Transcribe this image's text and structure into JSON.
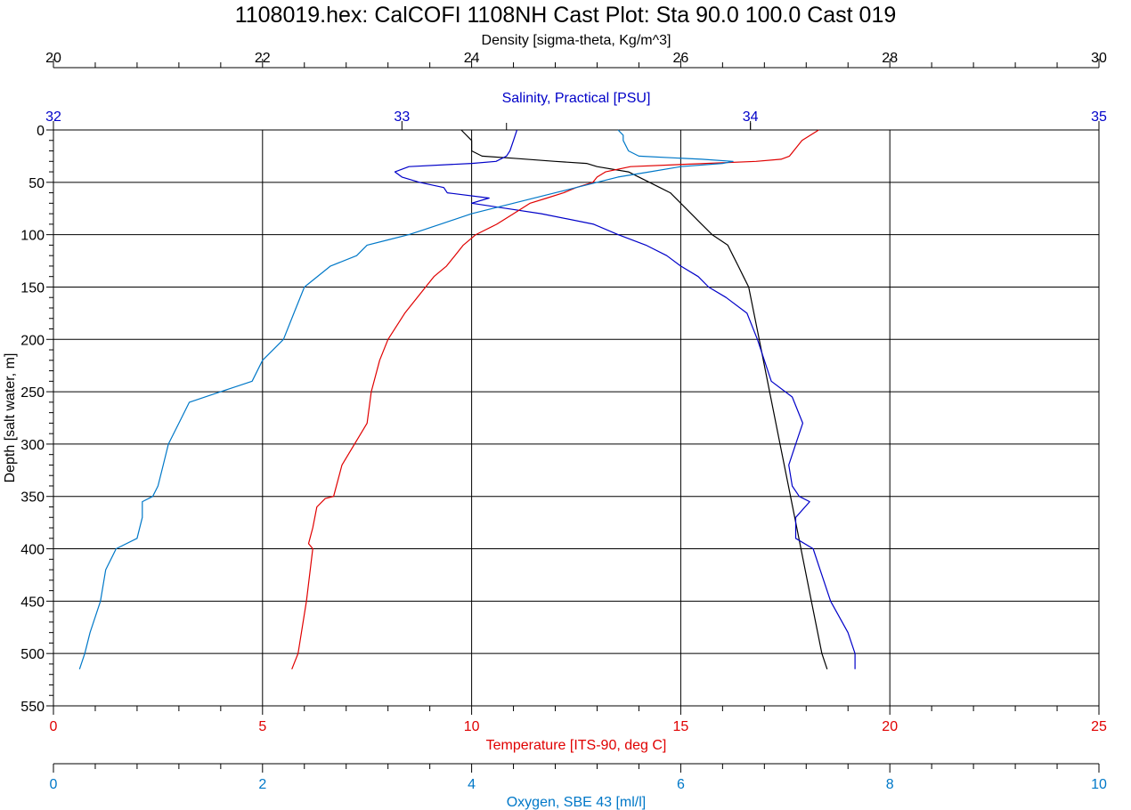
{
  "colors": {
    "density": "#000000",
    "salinity": "#0000c8",
    "temperature": "#e00000",
    "oxygen": "#0078c8",
    "grid": "#000000"
  },
  "chart_data": {
    "type": "line",
    "title": "1108019.hex: CalCOFI 1108NH Cast Plot: Sta 90.0 100.0 Cast 019",
    "grid": true,
    "y_axis": {
      "label": "Depth [salt water, m]",
      "range": [
        0,
        550
      ],
      "inverted": true,
      "ticks": [
        "0",
        "50",
        "100",
        "150",
        "200",
        "250",
        "300",
        "350",
        "400",
        "450",
        "500",
        "550"
      ]
    },
    "x_axes": [
      {
        "id": "density",
        "position": "top",
        "label": "Density [sigma-theta, Kg/m^3]",
        "range": [
          20,
          30
        ],
        "ticks": [
          "20",
          "22",
          "24",
          "26",
          "28",
          "30"
        ]
      },
      {
        "id": "salinity",
        "position": "top",
        "label": "Salinity, Practical [PSU]",
        "range": [
          32,
          35
        ],
        "ticks": [
          "32",
          "33",
          "34",
          "35"
        ]
      },
      {
        "id": "temperature",
        "position": "bottom",
        "label": "Temperature [ITS-90, deg C]",
        "range": [
          0,
          25
        ],
        "ticks": [
          "0",
          "5",
          "10",
          "15",
          "20",
          "25"
        ]
      },
      {
        "id": "oxygen",
        "position": "bottom",
        "label": "Oxygen, SBE 43 [ml/l]",
        "range": [
          0,
          10
        ],
        "ticks": [
          "0",
          "2",
          "4",
          "6",
          "8",
          "10"
        ]
      }
    ],
    "series": [
      {
        "axis": "density",
        "depth": [
          0,
          10,
          20,
          25,
          27,
          30,
          32,
          35,
          40,
          45,
          50,
          55,
          60,
          70,
          80,
          90,
          100,
          110,
          120,
          130,
          140,
          150,
          175,
          200,
          250,
          300,
          350,
          400,
          450,
          500,
          515
        ],
        "values": [
          23.9,
          24.0,
          24.0,
          24.1,
          24.4,
          24.8,
          25.1,
          25.2,
          25.5,
          25.6,
          25.7,
          25.8,
          25.9,
          26.0,
          26.1,
          26.2,
          26.3,
          26.45,
          26.5,
          26.55,
          26.6,
          26.65,
          26.7,
          26.75,
          26.85,
          26.95,
          27.05,
          27.15,
          27.25,
          27.35,
          27.4
        ]
      },
      {
        "axis": "salinity",
        "depth": [
          0,
          10,
          20,
          25,
          30,
          32,
          35,
          40,
          45,
          50,
          55,
          60,
          65,
          70,
          75,
          80,
          90,
          100,
          110,
          120,
          130,
          140,
          150,
          160,
          175,
          200,
          220,
          240,
          255,
          280,
          300,
          320,
          340,
          350,
          355,
          370,
          390,
          400,
          420,
          450,
          480,
          500,
          515
        ],
        "values": [
          33.33,
          33.32,
          33.31,
          33.3,
          33.27,
          33.2,
          33.02,
          32.98,
          33.0,
          33.05,
          33.12,
          33.13,
          33.25,
          33.2,
          33.3,
          33.4,
          33.55,
          33.62,
          33.7,
          33.76,
          33.8,
          33.85,
          33.88,
          33.93,
          33.99,
          34.02,
          34.04,
          34.06,
          34.12,
          34.15,
          34.13,
          34.11,
          34.12,
          34.14,
          34.17,
          34.13,
          34.13,
          34.18,
          34.2,
          34.23,
          34.28,
          34.3,
          34.3
        ]
      },
      {
        "axis": "temperature",
        "depth": [
          0,
          5,
          10,
          15,
          20,
          25,
          28,
          30,
          32,
          35,
          40,
          45,
          50,
          55,
          60,
          65,
          70,
          80,
          90,
          100,
          110,
          120,
          130,
          140,
          150,
          175,
          200,
          220,
          250,
          280,
          300,
          320,
          350,
          352,
          360,
          380,
          395,
          400,
          450,
          500,
          515
        ],
        "values": [
          18.3,
          18.1,
          17.9,
          17.8,
          17.7,
          17.6,
          17.4,
          16.8,
          15.6,
          13.8,
          13.2,
          13.0,
          12.9,
          12.5,
          12.2,
          11.8,
          11.4,
          11.0,
          10.6,
          10.1,
          9.8,
          9.6,
          9.4,
          9.1,
          8.9,
          8.4,
          8.0,
          7.8,
          7.6,
          7.5,
          7.2,
          6.9,
          6.7,
          6.5,
          6.3,
          6.2,
          6.1,
          6.2,
          6.05,
          5.85,
          5.7
        ]
      },
      {
        "axis": "oxygen",
        "depth": [
          0,
          5,
          10,
          20,
          25,
          28,
          30,
          32,
          35,
          40,
          45,
          50,
          55,
          60,
          70,
          80,
          90,
          95,
          100,
          105,
          110,
          120,
          130,
          150,
          175,
          200,
          220,
          240,
          250,
          260,
          280,
          300,
          320,
          340,
          350,
          355,
          370,
          390,
          400,
          420,
          450,
          480,
          500,
          515
        ],
        "values": [
          5.4,
          5.45,
          5.45,
          5.5,
          5.6,
          6.2,
          6.5,
          6.4,
          6.0,
          5.7,
          5.4,
          5.2,
          5.0,
          4.8,
          4.4,
          4.0,
          3.7,
          3.55,
          3.4,
          3.2,
          3.0,
          2.9,
          2.65,
          2.4,
          2.3,
          2.2,
          2.0,
          1.9,
          1.6,
          1.3,
          1.2,
          1.1,
          1.05,
          1.0,
          0.95,
          0.85,
          0.85,
          0.8,
          0.6,
          0.5,
          0.45,
          0.35,
          0.3,
          0.25
        ]
      }
    ]
  }
}
